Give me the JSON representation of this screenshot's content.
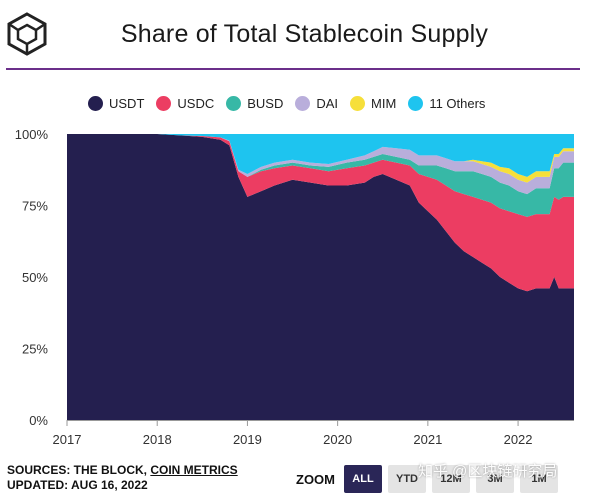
{
  "header": {
    "title": "Share of Total Stablecoin Supply"
  },
  "legend": [
    {
      "label": "USDT",
      "color": "#241f4f"
    },
    {
      "label": "USDC",
      "color": "#ec3d62"
    },
    {
      "label": "BUSD",
      "color": "#37b8a6"
    },
    {
      "label": "DAI",
      "color": "#b9aedb"
    },
    {
      "label": "MIM",
      "color": "#f6df3a"
    },
    {
      "label": "11 Others",
      "color": "#1ec4ef"
    }
  ],
  "footer": {
    "sources_prefix": "SOURCES: THE BLOCK, ",
    "sources_link": "COIN METRICS",
    "updated": "UPDATED: AUG 16, 2022"
  },
  "zoom": {
    "label": "ZOOM",
    "buttons": [
      "ALL",
      "YTD",
      "12M",
      "3M",
      "1M"
    ],
    "active": "ALL"
  },
  "watermark": "知乎 @区块链研究局",
  "chart_data": {
    "type": "area",
    "stacked": true,
    "normalized": true,
    "x": [
      2017.0,
      2017.5,
      2018.0,
      2018.25,
      2018.5,
      2018.7,
      2018.8,
      2018.9,
      2019.0,
      2019.15,
      2019.3,
      2019.5,
      2019.7,
      2019.9,
      2020.1,
      2020.3,
      2020.4,
      2020.5,
      2020.65,
      2020.8,
      2020.9,
      2021.0,
      2021.1,
      2021.2,
      2021.3,
      2021.4,
      2021.5,
      2021.6,
      2021.7,
      2021.8,
      2021.9,
      2022.0,
      2022.1,
      2022.2,
      2022.3,
      2022.35,
      2022.4,
      2022.45,
      2022.5,
      2022.62
    ],
    "series": [
      {
        "name": "USDT",
        "values": [
          100,
          100,
          100,
          99.5,
          99,
          98,
          96,
          85,
          78,
          80,
          82,
          84,
          83,
          82,
          82,
          83,
          85,
          86,
          84,
          82,
          76,
          73,
          70,
          66,
          62,
          59,
          57,
          55,
          53,
          50,
          48,
          46,
          45,
          46,
          46,
          46,
          50,
          46,
          46,
          46
        ]
      },
      {
        "name": "USDC",
        "values": [
          0,
          0,
          0,
          0,
          0.3,
          0.8,
          1.5,
          2,
          7,
          7,
          6,
          5,
          5,
          5,
          6,
          6,
          5,
          5,
          6,
          7,
          10,
          12,
          14,
          16,
          18,
          20,
          21,
          22,
          23,
          24,
          25,
          26,
          26,
          26,
          26,
          26,
          28,
          31,
          32,
          32
        ]
      },
      {
        "name": "BUSD",
        "values": [
          0,
          0,
          0,
          0,
          0,
          0,
          0,
          0,
          0,
          0.5,
          1,
          1,
          1,
          1.5,
          2,
          2,
          2,
          2,
          2,
          2,
          3,
          4,
          5,
          6,
          7,
          8,
          9,
          9,
          9,
          9,
          9,
          8,
          8,
          9,
          9,
          9,
          10,
          11,
          12,
          12
        ]
      },
      {
        "name": "DAI",
        "values": [
          0,
          0,
          0,
          0,
          0,
          0,
          0.2,
          0.5,
          1,
          1,
          1,
          1,
          1,
          1,
          1,
          1.5,
          2,
          2.5,
          3,
          3.5,
          3.5,
          3.5,
          3.5,
          3.5,
          3.5,
          3.5,
          3.5,
          3.5,
          3.5,
          4,
          4,
          4,
          4,
          4,
          4,
          4,
          4,
          4,
          4,
          4
        ]
      },
      {
        "name": "MIM",
        "values": [
          0,
          0,
          0,
          0,
          0,
          0,
          0,
          0,
          0,
          0,
          0,
          0,
          0,
          0,
          0,
          0,
          0,
          0,
          0,
          0,
          0,
          0,
          0,
          0,
          0,
          0,
          0.5,
          1,
          1.5,
          1.5,
          2,
          2,
          2,
          2,
          2,
          2,
          1,
          1,
          1,
          1
        ]
      },
      {
        "name": "11 Others",
        "values": [
          0,
          0,
          0,
          0.5,
          0.7,
          1.2,
          2.3,
          12.5,
          14,
          11.5,
          10,
          9,
          10,
          10.5,
          9,
          7.5,
          6,
          4.5,
          5,
          5.5,
          7.5,
          7.5,
          7.5,
          8.5,
          9.5,
          9.5,
          9,
          9.5,
          10,
          11.5,
          12,
          14,
          15,
          13,
          13,
          13,
          7,
          7,
          5,
          5
        ]
      }
    ],
    "xticks": [
      "2017",
      "2018",
      "2019",
      "2020",
      "2021",
      "2022"
    ],
    "xtick_values": [
      2017,
      2018,
      2019,
      2020,
      2021,
      2022
    ],
    "yticks": [
      "0%",
      "25%",
      "50%",
      "75%",
      "100%"
    ],
    "ytick_values": [
      0,
      25,
      50,
      75,
      100
    ],
    "xlim": [
      2017.0,
      2022.62
    ],
    "ylim": [
      0,
      100
    ],
    "grid": true,
    "legend_position": "top"
  }
}
